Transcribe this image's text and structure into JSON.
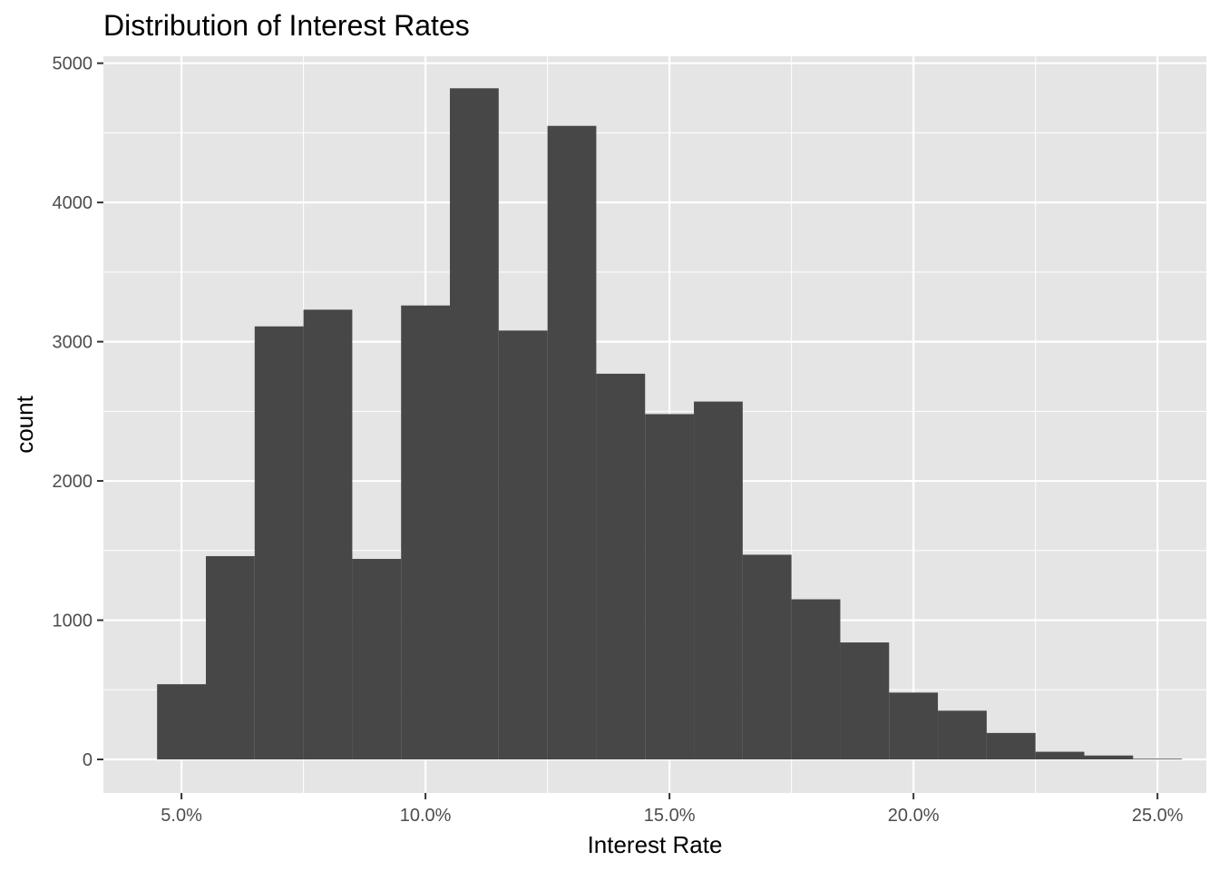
{
  "chart_data": {
    "type": "bar",
    "title": "Distribution of Interest Rates",
    "xlabel": "Interest Rate",
    "ylabel": "count",
    "bin_width": 1,
    "bins": [
      {
        "x0": 4.5,
        "x1": 5.5,
        "count": 540
      },
      {
        "x0": 5.5,
        "x1": 6.5,
        "count": 1460
      },
      {
        "x0": 6.5,
        "x1": 7.5,
        "count": 3110
      },
      {
        "x0": 7.5,
        "x1": 8.5,
        "count": 3230
      },
      {
        "x0": 8.5,
        "x1": 9.5,
        "count": 1440
      },
      {
        "x0": 9.5,
        "x1": 10.5,
        "count": 3260
      },
      {
        "x0": 10.5,
        "x1": 11.5,
        "count": 4820
      },
      {
        "x0": 11.5,
        "x1": 12.5,
        "count": 3080
      },
      {
        "x0": 12.5,
        "x1": 13.5,
        "count": 4550
      },
      {
        "x0": 13.5,
        "x1": 14.5,
        "count": 2770
      },
      {
        "x0": 14.5,
        "x1": 15.5,
        "count": 2480
      },
      {
        "x0": 15.5,
        "x1": 16.5,
        "count": 2570
      },
      {
        "x0": 16.5,
        "x1": 17.5,
        "count": 1470
      },
      {
        "x0": 17.5,
        "x1": 18.5,
        "count": 1150
      },
      {
        "x0": 18.5,
        "x1": 19.5,
        "count": 840
      },
      {
        "x0": 19.5,
        "x1": 20.5,
        "count": 480
      },
      {
        "x0": 20.5,
        "x1": 21.5,
        "count": 350
      },
      {
        "x0": 21.5,
        "x1": 22.5,
        "count": 190
      },
      {
        "x0": 22.5,
        "x1": 23.5,
        "count": 55
      },
      {
        "x0": 23.5,
        "x1": 24.5,
        "count": 28
      },
      {
        "x0": 24.5,
        "x1": 25.5,
        "count": 5
      }
    ],
    "x_ticks": [
      5,
      10,
      15,
      20,
      25
    ],
    "x_tick_labels": [
      "5.0%",
      "10.0%",
      "15.0%",
      "20.0%",
      "25.0%"
    ],
    "y_ticks": [
      0,
      1000,
      2000,
      3000,
      4000,
      5000
    ],
    "y_tick_labels": [
      "0",
      "1000",
      "2000",
      "3000",
      "4000",
      "5000"
    ],
    "xlim": [
      3.4,
      26.0
    ],
    "ylim": [
      -241,
      5050
    ],
    "grid": true,
    "legend": "none",
    "colors": {
      "bar": "#474747",
      "panel": "#e5e5e5",
      "grid": "#ffffff",
      "tick_text": "#4d4d4d",
      "tick_mark": "#333333"
    }
  }
}
